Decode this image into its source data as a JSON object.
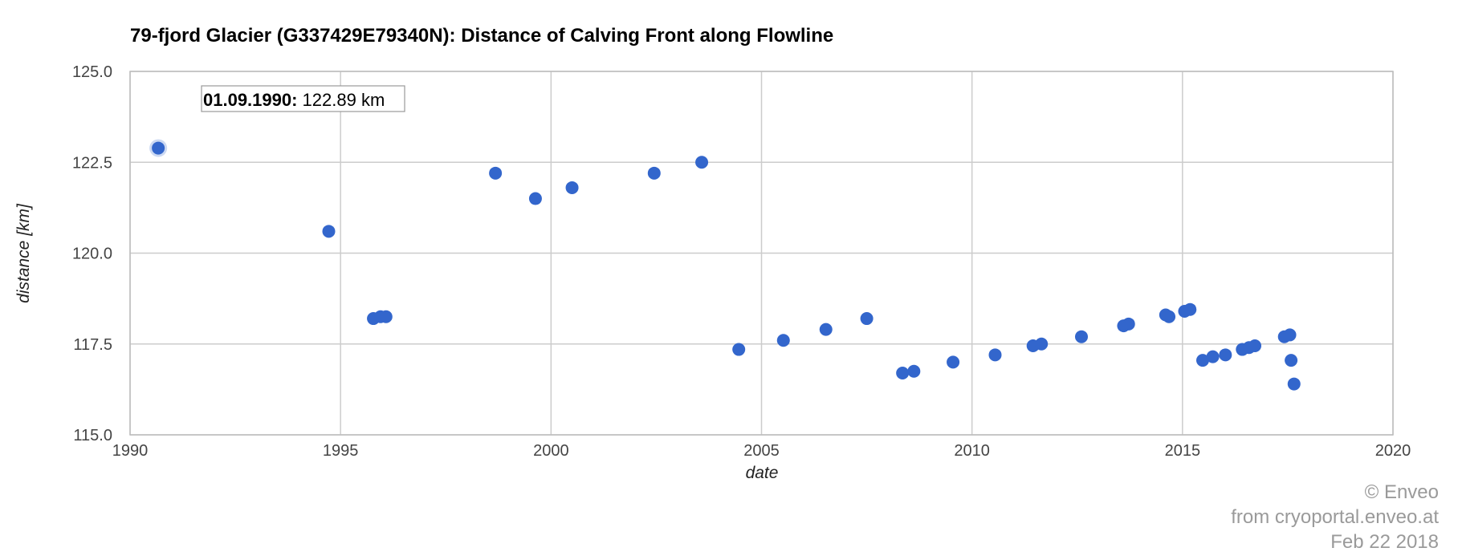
{
  "chart_data": {
    "type": "scatter",
    "title": "79-fjord Glacier (G337429E79340N): Distance of Calving Front along Flowline",
    "xlabel": "date",
    "ylabel": "distance [km]",
    "xlim": [
      1990,
      2020
    ],
    "ylim": [
      115.0,
      125.0
    ],
    "x_ticks": [
      "1990",
      "1995",
      "2000",
      "2005",
      "2010",
      "2015",
      "2020"
    ],
    "y_ticks": [
      "115.0",
      "117.5",
      "120.0",
      "122.5",
      "125.0"
    ],
    "grid": true,
    "marker_color": "#3366cc",
    "series": [
      {
        "points": [
          {
            "x": 1990.67,
            "y": 122.89
          },
          {
            "x": 1994.72,
            "y": 120.6
          },
          {
            "x": 1995.78,
            "y": 118.2
          },
          {
            "x": 1995.95,
            "y": 118.25
          },
          {
            "x": 1996.08,
            "y": 118.25
          },
          {
            "x": 1998.68,
            "y": 122.2
          },
          {
            "x": 1999.63,
            "y": 121.5
          },
          {
            "x": 2000.5,
            "y": 121.8
          },
          {
            "x": 2002.45,
            "y": 122.2
          },
          {
            "x": 2003.58,
            "y": 122.5
          },
          {
            "x": 2004.46,
            "y": 117.35
          },
          {
            "x": 2005.52,
            "y": 117.6
          },
          {
            "x": 2006.53,
            "y": 117.9
          },
          {
            "x": 2007.5,
            "y": 118.2
          },
          {
            "x": 2008.35,
            "y": 116.7
          },
          {
            "x": 2008.62,
            "y": 116.75
          },
          {
            "x": 2009.55,
            "y": 117.0
          },
          {
            "x": 2010.55,
            "y": 117.2
          },
          {
            "x": 2011.45,
            "y": 117.45
          },
          {
            "x": 2011.65,
            "y": 117.5
          },
          {
            "x": 2012.6,
            "y": 117.7
          },
          {
            "x": 2013.6,
            "y": 118.0
          },
          {
            "x": 2013.72,
            "y": 118.05
          },
          {
            "x": 2014.6,
            "y": 118.3
          },
          {
            "x": 2014.68,
            "y": 118.25
          },
          {
            "x": 2015.05,
            "y": 118.4
          },
          {
            "x": 2015.18,
            "y": 118.45
          },
          {
            "x": 2015.48,
            "y": 117.05
          },
          {
            "x": 2015.72,
            "y": 117.15
          },
          {
            "x": 2016.02,
            "y": 117.2
          },
          {
            "x": 2016.42,
            "y": 117.35
          },
          {
            "x": 2016.58,
            "y": 117.4
          },
          {
            "x": 2016.72,
            "y": 117.45
          },
          {
            "x": 2017.42,
            "y": 117.7
          },
          {
            "x": 2017.55,
            "y": 117.75
          },
          {
            "x": 2017.58,
            "y": 117.05
          },
          {
            "x": 2017.65,
            "y": 116.4
          }
        ]
      }
    ],
    "tooltip": {
      "date": "01.09.1990:",
      "value": " 122.89 km"
    }
  },
  "credit": {
    "line1": "© Enveo",
    "line2": "from cryoportal.enveo.at",
    "line3": "Feb 22 2018"
  }
}
